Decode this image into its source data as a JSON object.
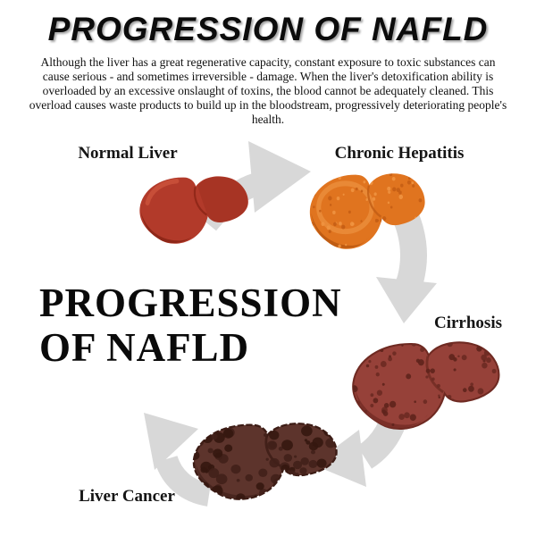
{
  "header": {
    "title": "PROGRESSION OF NAFLD",
    "intro": "Although the liver has a great regenerative capacity, constant exposure to toxic substances can cause serious - and sometimes irreversible - damage. When the liver's detoxification ability is overloaded by an excessive onslaught of toxins, the blood cannot be adequately cleaned. This overload causes waste products to build up in the bloodstream, progressively deteriorating people's health."
  },
  "center_heading": {
    "line1": "PROGRESSION",
    "line2": "OF NAFLD"
  },
  "arrow_color": "#d8d8d8",
  "stages": [
    {
      "label": "Normal Liver",
      "seed": 11,
      "colors": {
        "base": "#b23a2a",
        "shade": "#8e2718",
        "highlight": "#ca523b",
        "divider": "#8a2415"
      },
      "texture": null
    },
    {
      "label": "Chronic Hepatitis",
      "seed": 23,
      "colors": {
        "base": "#e0741f",
        "shade": "#bf5c13",
        "highlight": "#f09a48",
        "divider": "#c05d14"
      },
      "texture": {
        "count": 80,
        "min_r": 1.5,
        "max_r": 3.5,
        "color": "#ef9440",
        "color2": "#c55e14"
      }
    },
    {
      "label": "Cirrhosis",
      "seed": 37,
      "colors": {
        "base": "#964139",
        "shade": "#7a2f28",
        "highlight": "#a44c41",
        "divider": "#6f2a22"
      },
      "texture": {
        "count": 85,
        "min_r": 1.5,
        "max_r": 4.5,
        "color": "#6b2a22",
        "color2": "#5e231c"
      }
    },
    {
      "label": "Liver Cancer",
      "seed": 53,
      "colors": {
        "base": "#5d342c",
        "shade": "#49261f",
        "highlight": "#6b4038",
        "divider": "#3c1c15"
      },
      "texture": {
        "count": 75,
        "min_r": 2,
        "max_r": 8,
        "color": "#41201a",
        "color2": "#35170f"
      }
    }
  ]
}
